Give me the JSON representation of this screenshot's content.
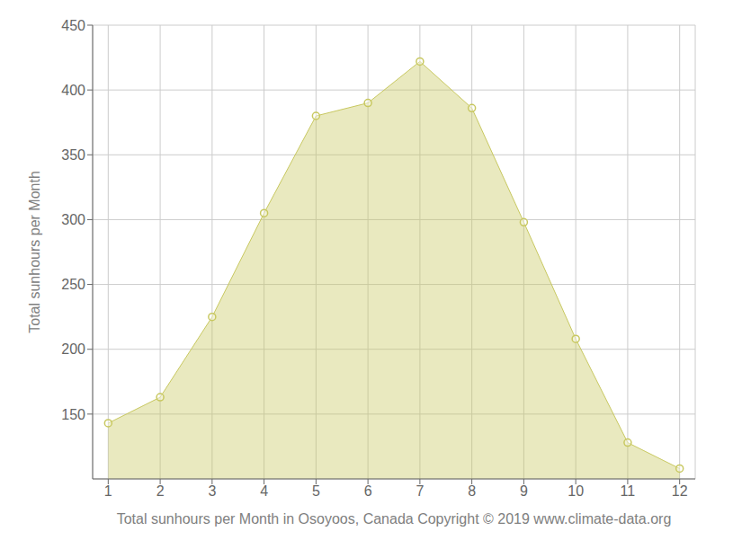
{
  "chart_data": {
    "type": "area",
    "x": [
      1,
      2,
      3,
      4,
      5,
      6,
      7,
      8,
      9,
      10,
      11,
      12
    ],
    "values": [
      143,
      163,
      225,
      305,
      380,
      390,
      422,
      386,
      298,
      208,
      128,
      108
    ],
    "color": "#C8C860",
    "marker": "circle",
    "xlabel": "Total sunhours per Month in Osoyoos, Canada Copyright © 2019 www.climate-data.org",
    "ylabel": "Total sunhours per Month",
    "xlim": [
      0.7,
      12.3
    ],
    "ylim": [
      100,
      450
    ],
    "xticks": [
      1,
      2,
      3,
      4,
      5,
      6,
      7,
      8,
      9,
      10,
      11,
      12
    ],
    "yticks": [
      150,
      200,
      250,
      300,
      350,
      400,
      450
    ],
    "grid": true
  }
}
